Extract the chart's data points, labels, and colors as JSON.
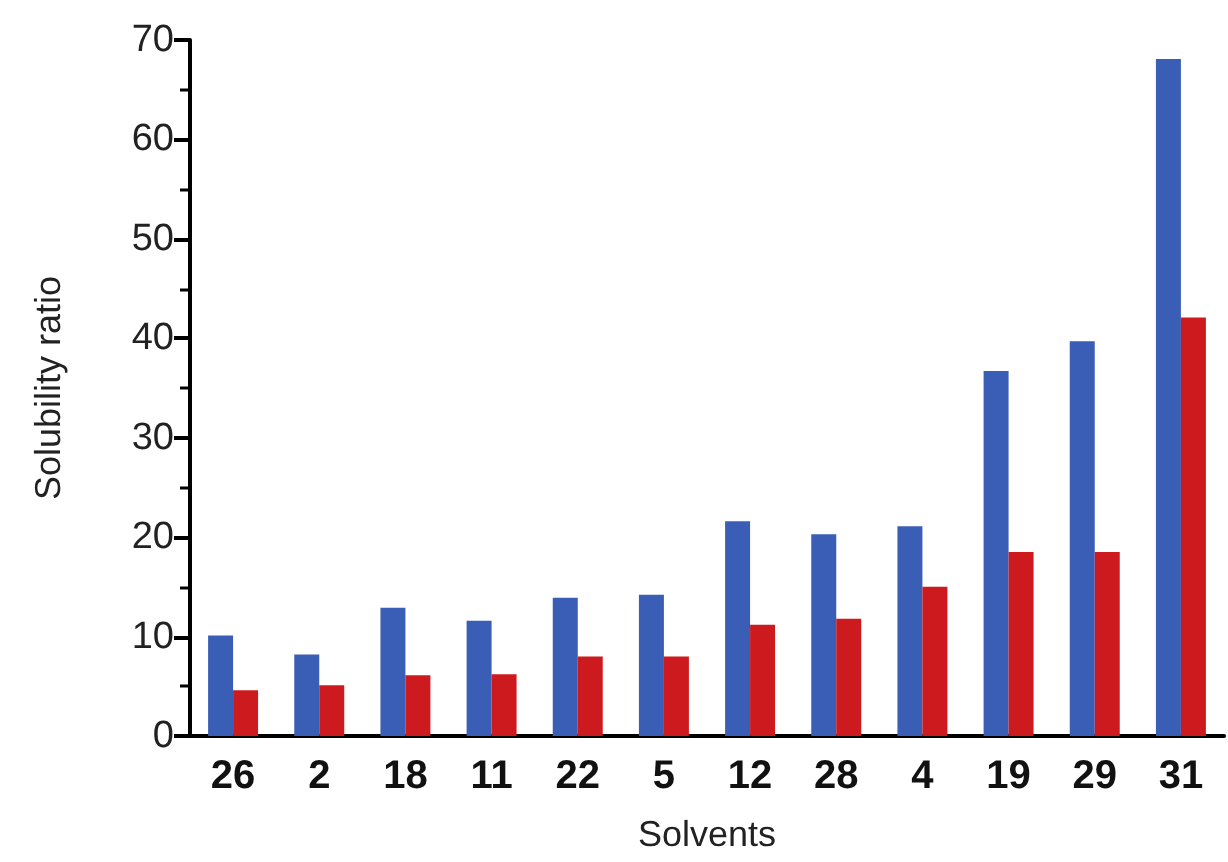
{
  "chart_data": {
    "type": "bar",
    "xlabel": "Solvents",
    "ylabel": "Solubility ratio",
    "categories": [
      "26",
      "2",
      "18",
      "11",
      "22",
      "5",
      "12",
      "28",
      "4",
      "19",
      "29",
      "31"
    ],
    "series": [
      {
        "color": "#3a5db5",
        "values": [
          10.1,
          8.2,
          12.9,
          11.6,
          13.9,
          14.2,
          21.6,
          20.3,
          21.1,
          36.7,
          39.7,
          68.1
        ]
      },
      {
        "color": "#cc1a1f",
        "values": [
          4.6,
          5.1,
          6.1,
          6.2,
          8.0,
          8.0,
          11.2,
          11.8,
          15.0,
          18.5,
          18.5,
          42.1
        ]
      }
    ],
    "ylim": [
      0,
      70
    ],
    "yticks": [
      0,
      10,
      20,
      30,
      40,
      50,
      60,
      70
    ],
    "grid": false
  }
}
